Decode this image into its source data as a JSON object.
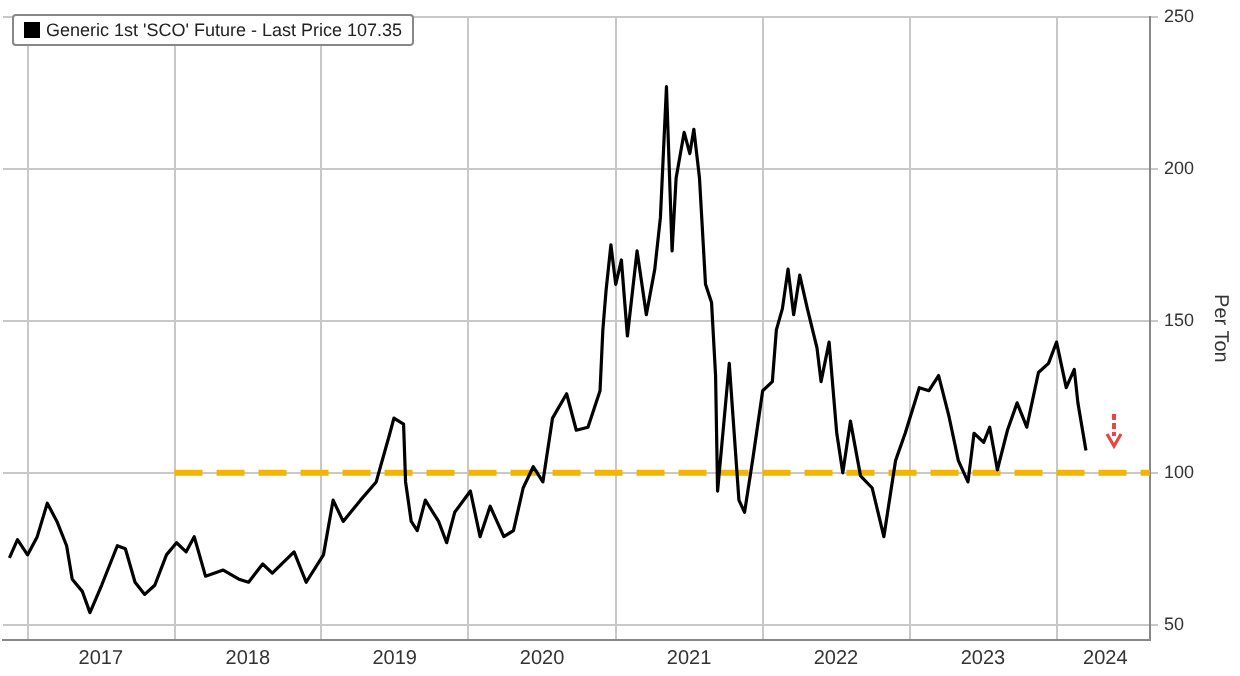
{
  "chart_data": {
    "type": "line",
    "ylabel": "Per Ton",
    "legend": "top left",
    "grid": true,
    "marker": "none",
    "xlim": [
      "2016-11-01",
      "2024-08-20"
    ],
    "ylim": [
      45,
      250
    ],
    "yticks": [
      50,
      100,
      150,
      200,
      250
    ],
    "xticks": [
      {
        "value": "2017-01-01",
        "label": null
      },
      {
        "value": "2017-07-02",
        "label": "2017"
      },
      {
        "value": "2018-01-01",
        "label": null
      },
      {
        "value": "2018-07-02",
        "label": "2018"
      },
      {
        "value": "2019-01-01",
        "label": null
      },
      {
        "value": "2019-07-02",
        "label": "2019"
      },
      {
        "value": "2020-01-01",
        "label": null
      },
      {
        "value": "2020-07-02",
        "label": "2020"
      },
      {
        "value": "2021-01-01",
        "label": null
      },
      {
        "value": "2021-07-02",
        "label": "2021"
      },
      {
        "value": "2022-01-01",
        "label": null
      },
      {
        "value": "2022-07-02",
        "label": "2022"
      },
      {
        "value": "2023-01-01",
        "label": null
      },
      {
        "value": "2023-07-02",
        "label": "2023"
      },
      {
        "value": "2024-01-01",
        "label": null
      },
      {
        "value": "2024-05-01",
        "label": "2024"
      }
    ],
    "series": [
      {
        "name": "Generic 1st 'SCO' Future - Last Price 107.35",
        "color": "#000000",
        "line_style": "solid",
        "x": [
          "2016-11-17",
          "2016-12-07",
          "2017-01-01",
          "2017-01-25",
          "2017-02-19",
          "2017-03-15",
          "2017-04-08",
          "2017-04-22",
          "2017-05-17",
          "2017-06-05",
          "2017-07-04",
          "2017-08-12",
          "2017-09-01",
          "2017-09-25",
          "2017-10-19",
          "2017-11-13",
          "2017-12-12",
          "2018-01-06",
          "2018-01-30",
          "2018-02-19",
          "2018-03-19",
          "2018-05-02",
          "2018-06-10",
          "2018-07-04",
          "2018-08-08",
          "2018-09-01",
          "2018-10-25",
          "2018-11-24",
          "2019-01-06",
          "2019-01-30",
          "2019-02-24",
          "2019-04-08",
          "2019-05-17",
          "2019-06-20",
          "2019-06-30",
          "2019-07-24",
          "2019-07-29",
          "2019-08-12",
          "2019-08-27",
          "2019-09-16",
          "2019-10-19",
          "2019-11-08",
          "2019-11-28",
          "2020-01-06",
          "2020-01-30",
          "2020-02-24",
          "2020-03-29",
          "2020-04-22",
          "2020-05-16",
          "2020-06-10",
          "2020-07-04",
          "2020-07-28",
          "2020-09-01",
          "2020-09-25",
          "2020-10-24",
          "2020-11-23",
          "2020-11-30",
          "2020-12-08",
          "2020-12-20",
          "2021-01-01",
          "2021-01-15",
          "2021-01-30",
          "2021-02-23",
          "2021-03-18",
          "2021-04-08",
          "2021-04-22",
          "2021-05-07",
          "2021-05-21",
          "2021-05-31",
          "2021-06-20",
          "2021-07-04",
          "2021-07-14",
          "2021-07-28",
          "2021-08-12",
          "2021-08-27",
          "2021-09-06",
          "2021-09-11",
          "2021-10-10",
          "2021-10-19",
          "2021-11-03",
          "2021-11-17",
          "2021-12-08",
          "2022-01-01",
          "2022-01-25",
          "2022-02-04",
          "2022-02-19",
          "2022-03-05",
          "2022-03-19",
          "2022-04-03",
          "2022-04-22",
          "2022-05-16",
          "2022-05-26",
          "2022-06-15",
          "2022-07-04",
          "2022-07-19",
          "2022-08-07",
          "2022-09-01",
          "2022-09-30",
          "2022-10-29",
          "2022-11-27",
          "2022-12-21",
          "2023-01-25",
          "2023-02-18",
          "2023-03-14",
          "2023-04-08",
          "2023-05-02",
          "2023-05-26",
          "2023-06-10",
          "2023-07-04",
          "2023-07-19",
          "2023-08-07",
          "2023-09-01",
          "2023-09-25",
          "2023-10-19",
          "2023-11-17",
          "2023-12-12",
          "2024-01-01",
          "2024-01-25",
          "2024-02-14",
          "2024-02-23",
          "2024-03-14"
        ],
        "values": [
          72,
          78,
          73,
          79,
          90,
          84,
          76,
          65,
          61,
          54,
          63,
          76,
          75,
          64,
          60,
          63,
          73,
          77,
          74,
          79,
          66,
          68,
          65,
          64,
          70,
          67,
          74,
          64,
          73,
          91,
          84,
          91,
          97,
          113,
          118,
          116,
          97,
          84,
          81,
          91,
          84,
          77,
          87,
          94,
          79,
          89,
          79,
          81,
          95,
          102,
          97,
          118,
          126,
          114,
          115,
          127,
          147,
          160,
          175,
          162,
          170,
          145,
          173,
          152,
          167,
          184,
          227,
          173,
          197,
          212,
          205,
          213,
          197,
          162,
          156,
          132,
          94,
          136,
          119,
          91,
          87,
          105,
          127,
          130,
          147,
          154,
          167,
          152,
          165,
          154,
          141,
          130,
          143,
          113,
          100,
          117,
          99,
          95,
          79,
          104,
          113,
          128,
          127,
          132,
          119,
          104,
          97,
          113,
          110,
          115,
          101,
          114,
          123,
          115,
          133,
          136,
          143,
          128,
          134,
          123,
          107.35
        ]
      },
      {
        "type": "line",
        "color": "#f5b400",
        "line_style": "dashed",
        "x": [
          "2018-01-01",
          "2024-08-20"
        ],
        "values": [
          100,
          100
        ]
      }
    ]
  }
}
